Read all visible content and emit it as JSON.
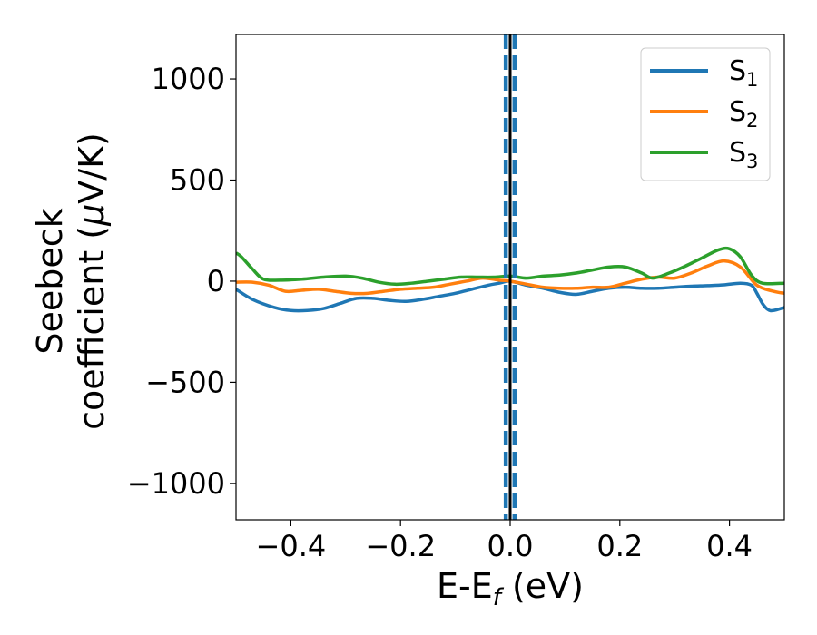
{
  "chart_data": {
    "type": "line",
    "xlabel": "E-E_f (eV)",
    "xlabel_main": "E-E",
    "xlabel_sub": "f",
    "xlabel_unit": " (eV)",
    "ylabel_line1": "Seebeck",
    "ylabel_line2_prefix": "coefficient  (",
    "ylabel_line2_mu": "μ",
    "ylabel_line2_suffix": "V/K)",
    "xlim": [
      -0.5,
      0.5
    ],
    "ylim": [
      -1180,
      1220
    ],
    "xticks": [
      -0.4,
      -0.2,
      0.0,
      0.2,
      0.4
    ],
    "xtick_labels": [
      "−0.4",
      "−0.2",
      "0.0",
      "0.2",
      "0.4"
    ],
    "yticks": [
      -1000,
      -500,
      0,
      500,
      1000
    ],
    "ytick_labels": [
      "−1000",
      "−500",
      "0",
      "500",
      "1000"
    ],
    "grid": false,
    "legend_position": "top-right",
    "series": [
      {
        "name": "S1",
        "label_main": "S",
        "label_sub": "1",
        "color": "#1f77b4",
        "x": [
          -0.5,
          -0.47,
          -0.43,
          -0.4,
          -0.37,
          -0.34,
          -0.31,
          -0.28,
          -0.25,
          -0.22,
          -0.19,
          -0.16,
          -0.13,
          -0.1,
          -0.07,
          -0.04,
          -0.02,
          0.0,
          0.03,
          0.06,
          0.09,
          0.12,
          0.15,
          0.18,
          0.21,
          0.24,
          0.27,
          0.3,
          0.33,
          0.36,
          0.39,
          0.42,
          0.44,
          0.45,
          0.46,
          0.47,
          0.48,
          0.5
        ],
        "values": [
          -40,
          -90,
          -130,
          -145,
          -145,
          -135,
          -110,
          -85,
          -85,
          -95,
          -100,
          -90,
          -75,
          -60,
          -40,
          -20,
          -10,
          0,
          -20,
          -35,
          -55,
          -65,
          -50,
          -35,
          -30,
          -35,
          -35,
          -30,
          -25,
          -22,
          -18,
          -10,
          -20,
          -60,
          -110,
          -140,
          -145,
          -130
        ]
      },
      {
        "name": "S2",
        "label_main": "S",
        "label_sub": "2",
        "color": "#ff7f0e",
        "x": [
          -0.5,
          -0.47,
          -0.44,
          -0.41,
          -0.38,
          -0.35,
          -0.32,
          -0.29,
          -0.26,
          -0.23,
          -0.2,
          -0.17,
          -0.14,
          -0.11,
          -0.08,
          -0.05,
          -0.02,
          0.0,
          0.03,
          0.06,
          0.09,
          0.12,
          0.15,
          0.18,
          0.21,
          0.24,
          0.27,
          0.3,
          0.33,
          0.36,
          0.39,
          0.42,
          0.45,
          0.48,
          0.5
        ],
        "values": [
          -5,
          -5,
          -20,
          -50,
          -45,
          -40,
          -50,
          -60,
          -60,
          -50,
          -40,
          -35,
          -30,
          -15,
          0,
          15,
          5,
          0,
          -15,
          -30,
          -35,
          -35,
          -30,
          -30,
          -10,
          10,
          20,
          15,
          40,
          75,
          100,
          70,
          -20,
          -50,
          -60
        ]
      },
      {
        "name": "S3",
        "label_main": "S",
        "label_sub": "3",
        "color": "#2ca02c",
        "x": [
          -0.5,
          -0.49,
          -0.47,
          -0.45,
          -0.42,
          -0.38,
          -0.34,
          -0.3,
          -0.27,
          -0.24,
          -0.21,
          -0.18,
          -0.15,
          -0.12,
          -0.09,
          -0.06,
          -0.03,
          0.0,
          0.03,
          0.06,
          0.09,
          0.12,
          0.15,
          0.18,
          0.21,
          0.24,
          0.26,
          0.29,
          0.32,
          0.35,
          0.38,
          0.4,
          0.42,
          0.44,
          0.46,
          0.5
        ],
        "values": [
          140,
          120,
          60,
          10,
          5,
          10,
          20,
          25,
          15,
          -5,
          -15,
          -10,
          0,
          10,
          20,
          20,
          20,
          25,
          15,
          25,
          30,
          40,
          55,
          70,
          70,
          40,
          15,
          40,
          75,
          115,
          155,
          160,
          120,
          30,
          -10,
          -10
        ]
      }
    ],
    "vlines": [
      {
        "x": -0.008,
        "style": "dashed",
        "color": "#1f77b4"
      },
      {
        "x": 0.0,
        "style": "solid",
        "color": "#000000"
      },
      {
        "x": 0.008,
        "style": "dashed",
        "color": "#1f77b4"
      }
    ]
  }
}
